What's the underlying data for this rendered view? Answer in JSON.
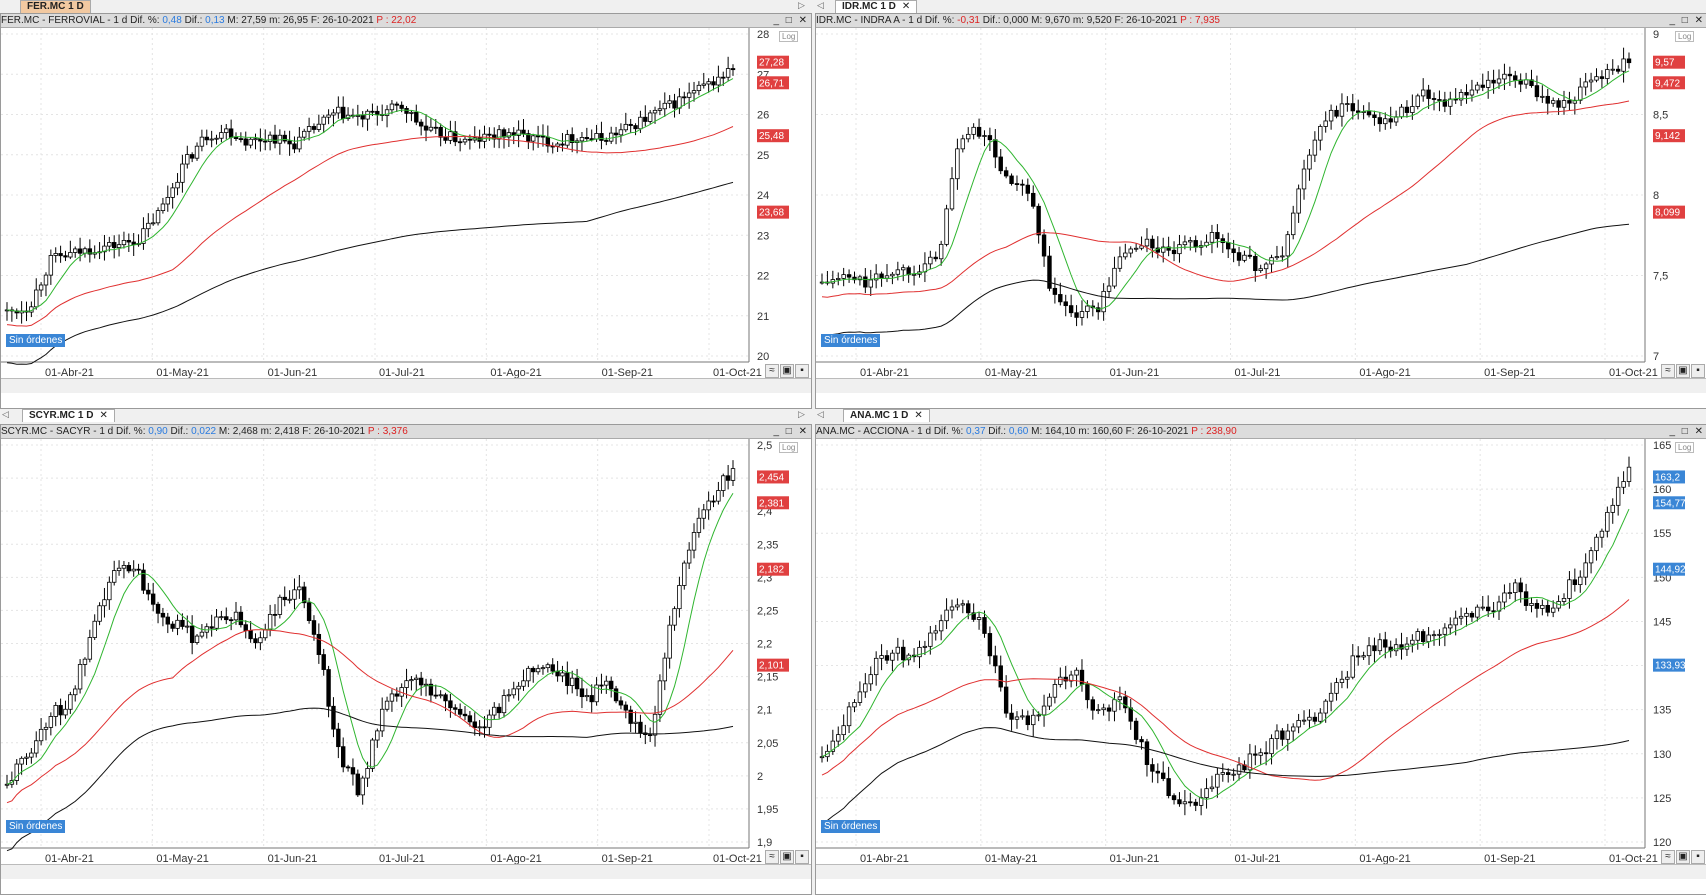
{
  "tabs_top_left": {
    "active": "FER.MC 1 D"
  },
  "tabs_top_right": {
    "active": "IDR.MC 1 D"
  },
  "tabs_bottom_left": {
    "active": "SCYR.MC 1 D"
  },
  "tabs_bottom_right": {
    "active": "ANA.MC 1 D"
  },
  "common": {
    "sin_ordenes": "Sin órdenes",
    "log": "Log",
    "win_buttons": "_ □ ✕",
    "close": "✕"
  },
  "colors": {
    "candle": "#000000",
    "ma_fast": "#2fb52f",
    "ma_mid": "#e03030",
    "ma_slow": "#111111",
    "label_red": "#e04040",
    "label_blue": "#3a86d6"
  },
  "panels": [
    {
      "id": "fer",
      "header": {
        "ticker": "FER.MC - FERROVIAL -  1 d",
        "dif_pct_label": "Dif. %:",
        "dif_pct": "0,48",
        "dif_label": "Dif.:",
        "dif": "0,13",
        "max": "M: 27,59",
        "min": "m: 26,95",
        "date": "F: 26-10-2021",
        "price": "P : 22,02"
      },
      "yticks": [
        "28",
        "27",
        "26",
        "25",
        "24",
        "23",
        "22",
        "21",
        "20"
      ],
      "xticks": [
        "01-Abr-21",
        "01-May-21",
        "01-Jun-21",
        "01-Jul-21",
        "01-Ago-21",
        "01-Sep-21",
        "01-Oct-21"
      ],
      "labels": [
        {
          "text": "27,28",
          "c": "red"
        },
        {
          "text": "26,71",
          "c": "red"
        },
        {
          "text": "25,48",
          "c": "red"
        },
        {
          "text": "23,68",
          "c": "red"
        }
      ],
      "chart_data": {
        "type": "candlestick",
        "ylim": [
          20,
          28
        ],
        "log_scale": true,
        "ma": {
          "fast": 27.28,
          "mid": 25.48,
          "slow": 23.68
        },
        "last": 26.71
      }
    },
    {
      "id": "idr",
      "header": {
        "ticker": "IDR.MC - INDRA A -  1 d",
        "dif_pct_label": "Dif. %:",
        "dif_pct": "-0,31",
        "dif_label": "Dif.:",
        "dif": "0,000",
        "max": "M: 9,670",
        "min": "m: 9,520",
        "date": "F: 26-10-2021",
        "price": "P : 7,935"
      },
      "yticks": [
        "9",
        "8,5",
        "8",
        "7,5",
        "7"
      ],
      "xticks": [
        "01-Abr-21",
        "01-May-21",
        "01-Jun-21",
        "01-Jul-21",
        "01-Ago-21",
        "01-Sep-21",
        "01-Oct-21"
      ],
      "labels": [
        {
          "text": "9,57",
          "c": "red"
        },
        {
          "text": "9,472",
          "c": "red"
        },
        {
          "text": "9,142",
          "c": "red"
        },
        {
          "text": "8,099",
          "c": "red"
        }
      ],
      "chart_data": {
        "type": "candlestick",
        "ylim": [
          6.9,
          9.6
        ],
        "log_scale": true,
        "ma": {
          "fast": 9.472,
          "mid": 9.142,
          "slow": 8.099
        },
        "last": 9.57
      }
    },
    {
      "id": "scyr",
      "header": {
        "ticker": "SCYR.MC - SACYR -  1 d",
        "dif_pct_label": "Dif. %:",
        "dif_pct": "0,90",
        "dif_label": "Dif.:",
        "dif": "0,022",
        "max": "M: 2,468",
        "min": "m: 2,418",
        "date": "F: 26-10-2021",
        "price": "P : 3,376"
      },
      "yticks": [
        "2,5",
        "2,45",
        "2,4",
        "2,35",
        "2,3",
        "2,25",
        "2,2",
        "2,15",
        "2,1",
        "2,05",
        "2",
        "1,95",
        "1,9"
      ],
      "xticks": [
        "01-Abr-21",
        "01-May-21",
        "01-Jun-21",
        "01-Jul-21",
        "01-Ago-21",
        "01-Sep-21",
        "01-Oct-21"
      ],
      "labels": [
        {
          "text": "2,454",
          "c": "red"
        },
        {
          "text": "2,381",
          "c": "red"
        },
        {
          "text": "2,182",
          "c": "red"
        },
        {
          "text": "2,101",
          "c": "red"
        }
      ],
      "chart_data": {
        "type": "candlestick",
        "ylim": [
          1.89,
          2.5
        ],
        "log_scale": true,
        "ma": {
          "fast": 2.381,
          "mid": 2.182,
          "slow": 2.101
        },
        "last": 2.454
      }
    },
    {
      "id": "ana",
      "header": {
        "ticker": "ANA.MC - ACCIONA -  1 d",
        "dif_pct_label": "Dif. %:",
        "dif_pct": "0,37",
        "dif_label": "Dif.:",
        "dif": "0,60",
        "max": "M: 164,10",
        "min": "m: 160,60",
        "date": "F: 26-10-2021",
        "price": "P : 238,90"
      },
      "yticks": [
        "165",
        "160",
        "155",
        "150",
        "145",
        "140",
        "135",
        "130",
        "125",
        "120"
      ],
      "xticks": [
        "01-Abr-21",
        "01-May-21",
        "01-Jun-21",
        "01-Jul-21",
        "01-Ago-21",
        "01-Sep-21",
        "01-Oct-21"
      ],
      "labels": [
        {
          "text": "163,2",
          "c": "blue"
        },
        {
          "text": "154,77",
          "c": "blue"
        },
        {
          "text": "144,92",
          "c": "blue"
        },
        {
          "text": "133,93",
          "c": "blue"
        }
      ],
      "chart_data": {
        "type": "candlestick",
        "ylim": [
          119,
          166
        ],
        "log_scale": true,
        "ma": {
          "fast": 154.77,
          "mid": 144.92,
          "slow": 133.93
        },
        "last": 163.2
      }
    }
  ]
}
